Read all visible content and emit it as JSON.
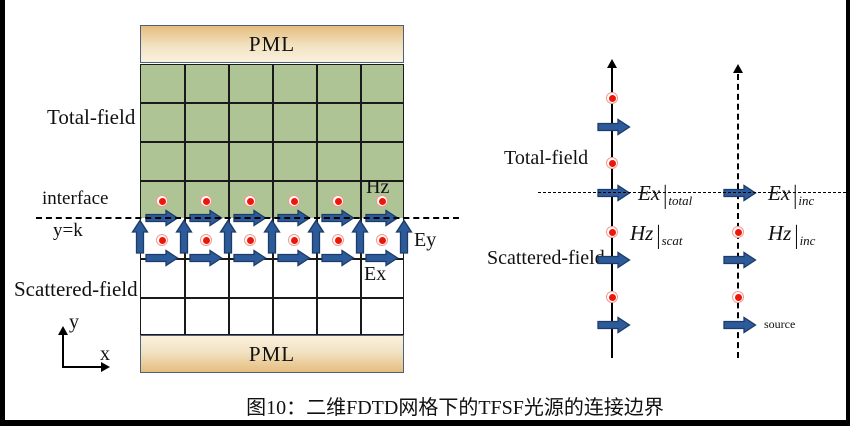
{
  "figure": {
    "caption": "图10：二维FDTD网格下的TFSF光源的连接边界"
  },
  "left_diagram": {
    "pml_top": "PML",
    "pml_bottom": "PML",
    "labels": {
      "total_field": "Total-field",
      "interface": "interface",
      "y_eq_k": "y=k",
      "scattered_field": "Scattered-field",
      "hz": "Hz",
      "ey": "Ey",
      "ex": "Ex",
      "axis_y": "y",
      "axis_x": "x"
    },
    "grid": {
      "columns": 6,
      "total_field_rows": 4,
      "scattered_field_rows": 3
    }
  },
  "right_diagram": {
    "labels": {
      "total_field": "Total-field",
      "scattered_field": "Scattered-field",
      "source": "source",
      "ex_total": {
        "main": "Ex",
        "sub": "total"
      },
      "ex_inc": {
        "main": "Ex",
        "sub": "inc"
      },
      "hz_scat": {
        "main": "Hz",
        "sub": "scat"
      },
      "hz_inc": {
        "main": "Hz",
        "sub": "inc"
      }
    }
  },
  "colors": {
    "arrow_fill": "#2d5a9b",
    "arrow_stroke": "#1c3c66",
    "dot_fill": "#ec1708",
    "dot_ring": "#f29c90",
    "green_cell": "#aec494",
    "pml_dark": "#e5bd7d",
    "pml_light": "#faf1de",
    "pml_border": "#4a627e"
  }
}
